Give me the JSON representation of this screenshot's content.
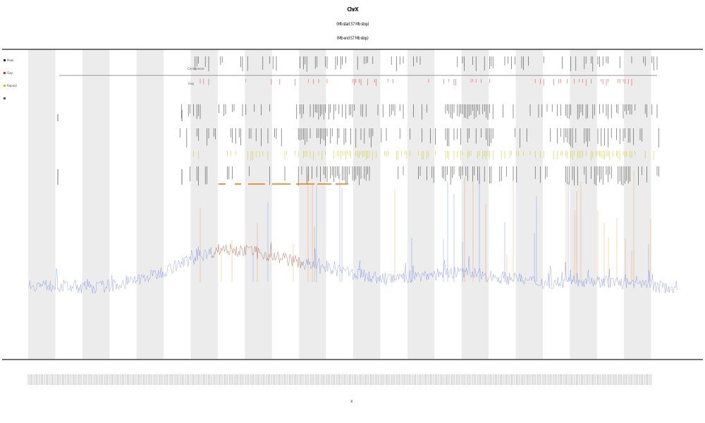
{
  "title": {
    "main": "ChrX",
    "line2": "(Mb start 57 Mb stop)",
    "line3": "(Mb end 57 Mb stop)"
  },
  "legend": {
    "items": [
      {
        "label": "Peak",
        "color": "#222222"
      },
      {
        "label": "Gap",
        "color": "#d62728"
      },
      {
        "label": "Repeat",
        "color": "#d4b800"
      },
      {
        "label": "",
        "color": "#555555"
      }
    ]
  },
  "annotation_label": "Centromere",
  "annotation_label2": "Gap",
  "xlabel": "x",
  "colors": {
    "baseline": "#4a5fd8",
    "highlight": "#e07b1a",
    "band": "#ececec",
    "track_dark": "#111111",
    "track_red": "#d62728",
    "track_yellow": "#c8c000"
  },
  "chart_data": {
    "type": "line",
    "title": "ChrX",
    "bands": 12,
    "grid": false,
    "legend_position": "top-left",
    "series": [
      {
        "name": "Peak",
        "color": "#4a5fd8"
      },
      {
        "name": "Gap",
        "color": "#e07b1a"
      }
    ],
    "baseline_profile": [
      {
        "x": 0.0,
        "y": 0.18
      },
      {
        "x": 0.05,
        "y": 0.17
      },
      {
        "x": 0.1,
        "y": 0.16
      },
      {
        "x": 0.15,
        "y": 0.19
      },
      {
        "x": 0.2,
        "y": 0.26
      },
      {
        "x": 0.25,
        "y": 0.36
      },
      {
        "x": 0.3,
        "y": 0.44
      },
      {
        "x": 0.35,
        "y": 0.41
      },
      {
        "x": 0.4,
        "y": 0.36
      },
      {
        "x": 0.45,
        "y": 0.3
      },
      {
        "x": 0.5,
        "y": 0.26
      },
      {
        "x": 0.55,
        "y": 0.22
      },
      {
        "x": 0.6,
        "y": 0.24
      },
      {
        "x": 0.65,
        "y": 0.27
      },
      {
        "x": 0.7,
        "y": 0.25
      },
      {
        "x": 0.75,
        "y": 0.22
      },
      {
        "x": 0.8,
        "y": 0.19
      },
      {
        "x": 0.85,
        "y": 0.21
      },
      {
        "x": 0.9,
        "y": 0.2
      },
      {
        "x": 0.95,
        "y": 0.17
      },
      {
        "x": 1.0,
        "y": 0.16
      }
    ]
  }
}
